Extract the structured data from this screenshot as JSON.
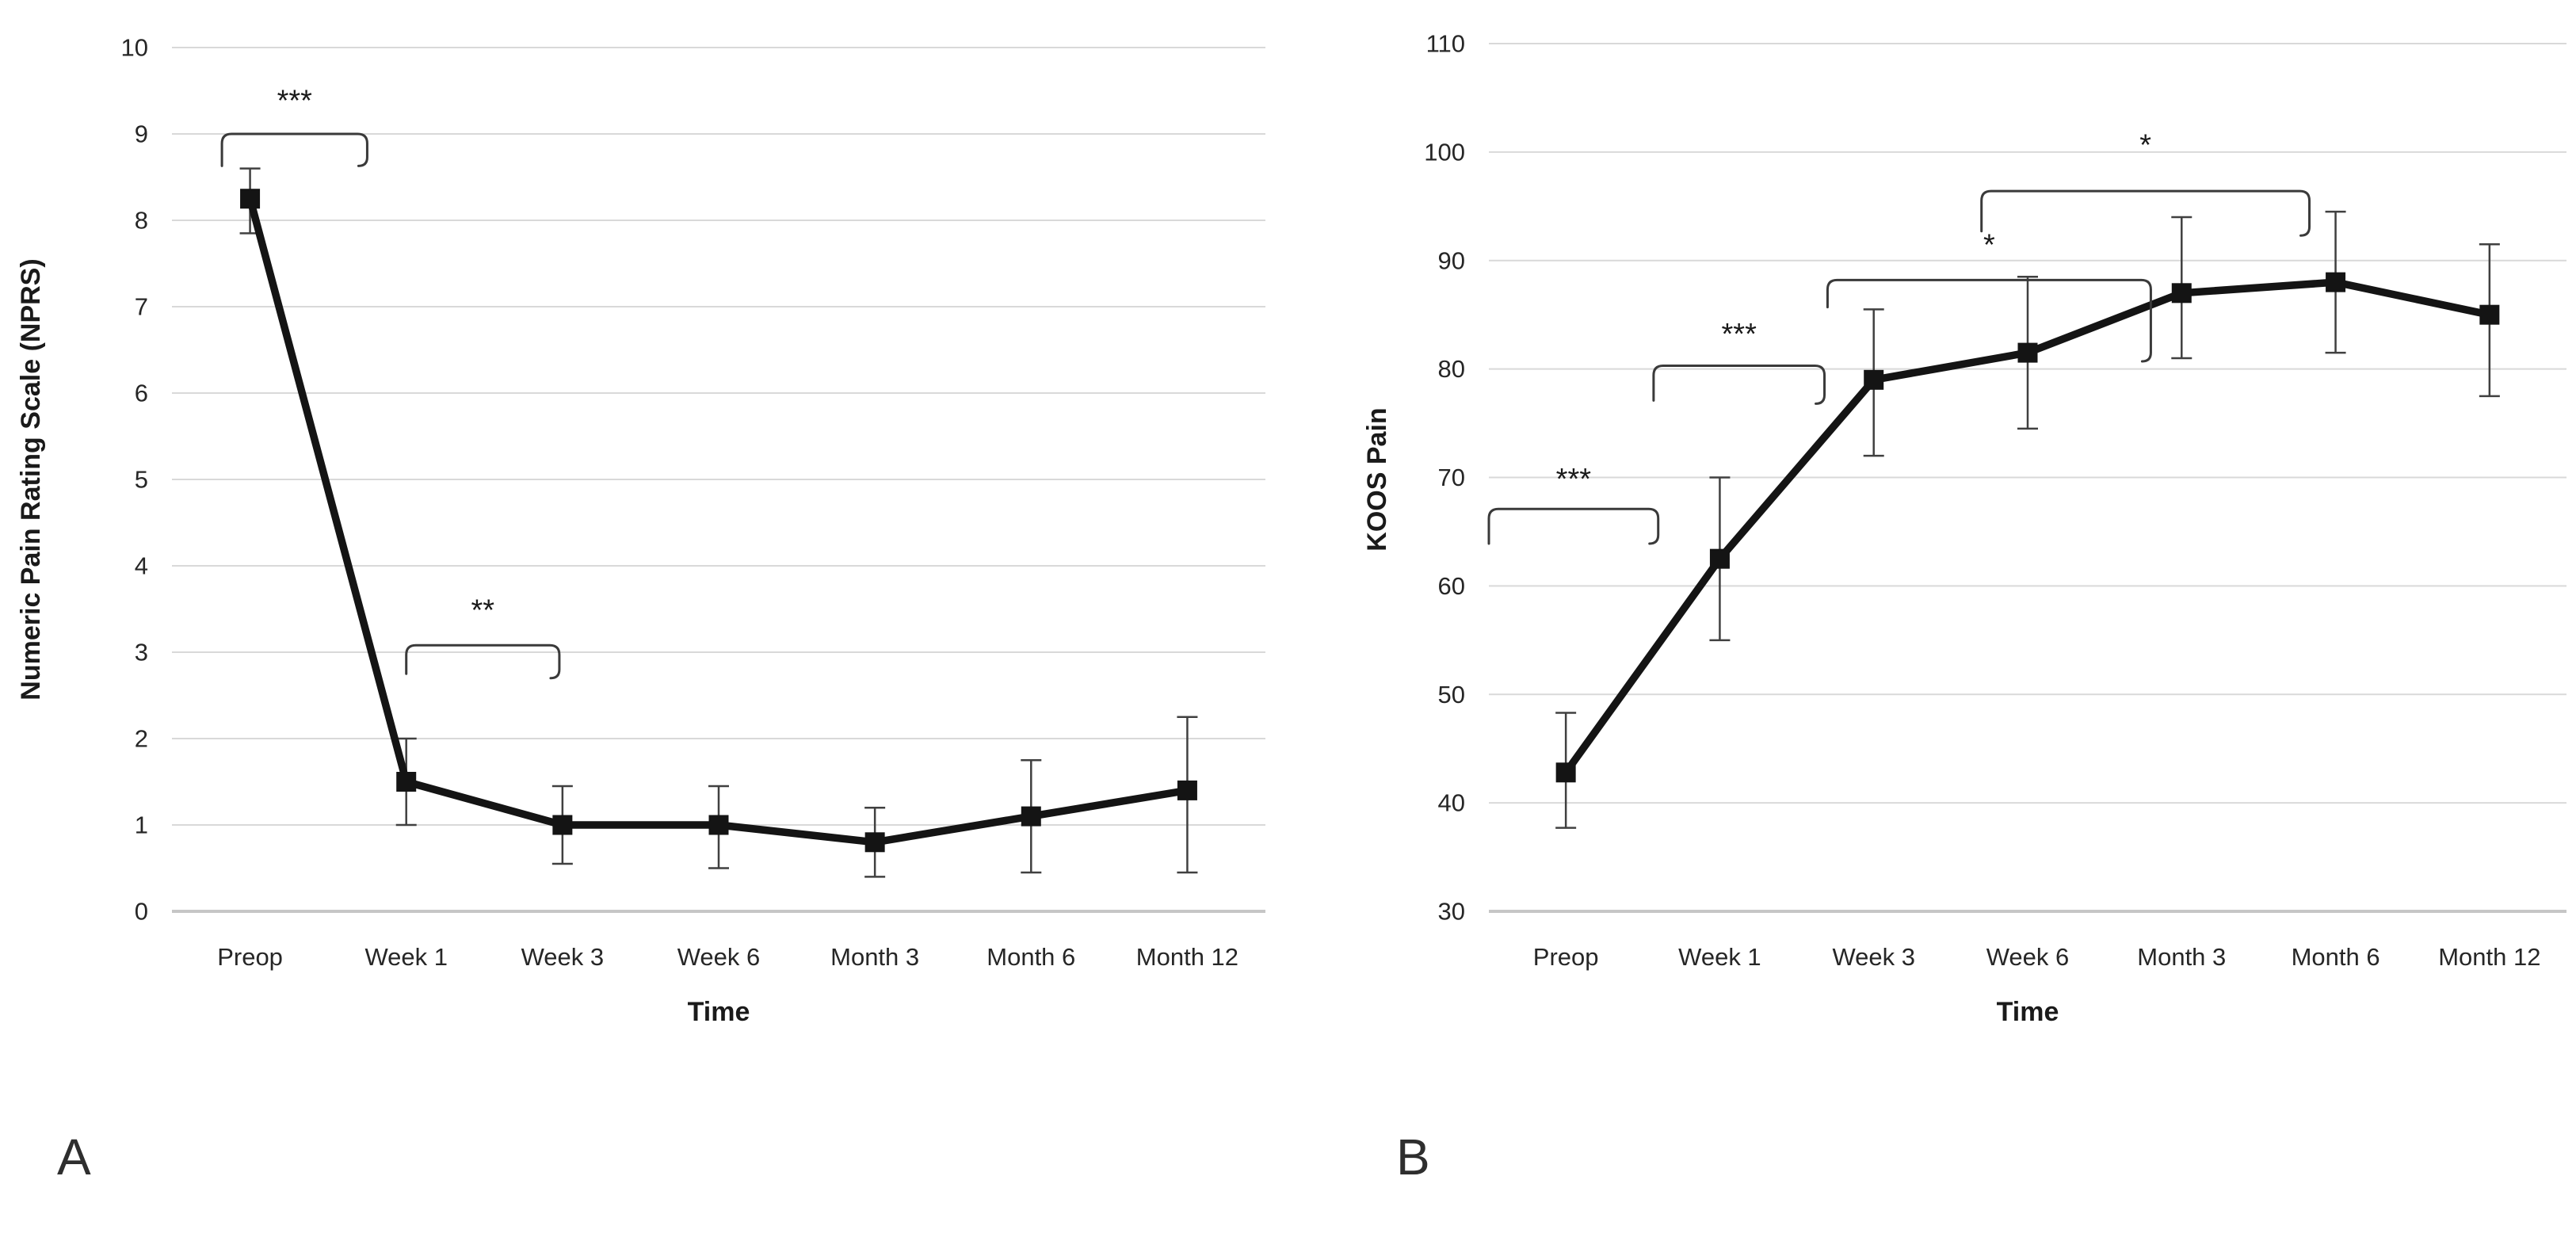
{
  "page": {
    "background": "#ffffff",
    "colors": {
      "series_line": "#141414",
      "marker_fill": "#141414",
      "error_bar": "#404040",
      "gridline": "#d9d9d9",
      "axis_baseline": "#c6c6c6",
      "text": "#262626",
      "bracket": "#3a3a3a"
    }
  },
  "chart_data": [
    {
      "type": "line",
      "panel_label": "A",
      "title": "",
      "xlabel": "Time",
      "ylabel": "Numeric Pain Rating Scale (NPRS)",
      "ylim": [
        0,
        10
      ],
      "ytick_step": 1,
      "grid": true,
      "legend": false,
      "categories": [
        "Preop",
        "Week 1",
        "Week 3",
        "Week 6",
        "Month 3",
        "Month 6",
        "Month 12"
      ],
      "series": [
        {
          "marker": "square",
          "values": [
            8.25,
            1.5,
            1.0,
            1.0,
            0.8,
            1.1,
            1.4
          ],
          "error_low": [
            7.85,
            1.0,
            0.55,
            0.5,
            0.4,
            0.45,
            0.45
          ],
          "error_high": [
            8.6,
            2.0,
            1.45,
            1.45,
            1.2,
            1.75,
            2.25
          ]
        }
      ],
      "significance_brackets": [
        {
          "from": "Preop",
          "to": "Week 1",
          "label": "***",
          "bracket_y": 9.0,
          "label_y": 9.38,
          "x_offsets": [
            -0.18,
            -0.25
          ],
          "leg_drop": [
            0.37,
            0.37
          ]
        },
        {
          "from": "Week 1",
          "to": "Week 3",
          "label": "**",
          "bracket_y": 3.08,
          "label_y": 3.48,
          "x_offsets": [
            0,
            -0.02
          ],
          "leg_drop": [
            0.33,
            0.38
          ]
        }
      ]
    },
    {
      "type": "line",
      "panel_label": "B",
      "title": "",
      "xlabel": "Time",
      "ylabel": "KOOS Pain",
      "ylim": [
        30,
        110
      ],
      "ytick_step": 10,
      "grid": true,
      "legend": false,
      "categories": [
        "Preop",
        "Week 1",
        "Week 3",
        "Week 6",
        "Month 3",
        "Month 6",
        "Month 12"
      ],
      "series": [
        {
          "marker": "square",
          "values": [
            42.8,
            62.5,
            79.0,
            81.5,
            87.0,
            88.0,
            85.0
          ],
          "error_low": [
            37.7,
            55.0,
            72.0,
            74.5,
            81.0,
            81.5,
            77.5
          ],
          "error_high": [
            48.3,
            70.0,
            85.5,
            88.5,
            94.0,
            94.5,
            91.5
          ]
        }
      ],
      "significance_brackets": [
        {
          "from": "Preop",
          "to": "Week 1",
          "label": "***",
          "bracket_y": 67.1,
          "label_y": 69.8,
          "x_offsets": [
            -0.5,
            -0.4
          ],
          "leg_drop": [
            3.2,
            3.2
          ]
        },
        {
          "from": "Week 1",
          "to": "Week 3",
          "label": "***",
          "bracket_y": 80.3,
          "label_y": 83.2,
          "x_offsets": [
            -0.43,
            -0.32
          ],
          "leg_drop": [
            3.2,
            3.5
          ]
        },
        {
          "from": "Week 3",
          "to": "Month 3",
          "label": "*",
          "bracket_y": 88.2,
          "label_y": 91.4,
          "x_offsets": [
            -0.3,
            -0.2
          ],
          "leg_drop": [
            2.5,
            7.5
          ]
        },
        {
          "from": "Week 6",
          "to": "Month 6",
          "label": "*",
          "bracket_y": 96.4,
          "label_y": 100.6,
          "x_offsets": [
            -0.3,
            -0.17
          ],
          "leg_drop": [
            3.7,
            4.1
          ]
        }
      ]
    }
  ]
}
